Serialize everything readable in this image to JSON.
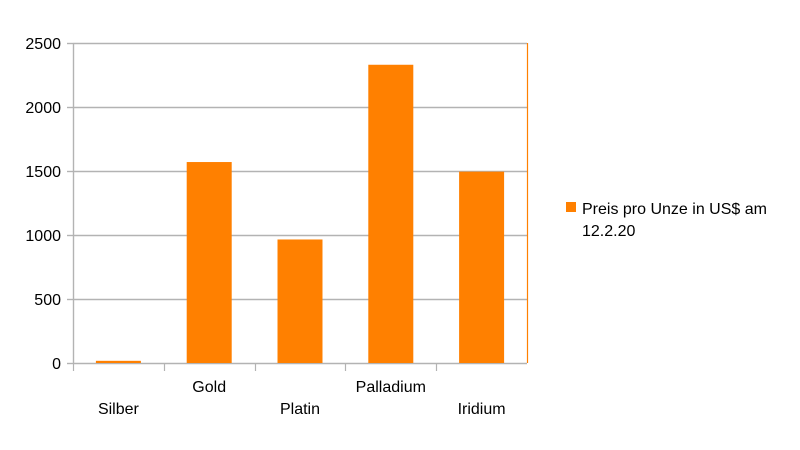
{
  "chart_data": {
    "type": "bar",
    "categories": [
      "Silber",
      "Gold",
      "Platin",
      "Palladium",
      "Iridium"
    ],
    "series": [
      {
        "name": "Preis pro Unze in US$ am 12.2.20",
        "values": [
          17,
          1570,
          965,
          2330,
          1495
        ]
      }
    ],
    "y_ticks": [
      0,
      500,
      1000,
      1500,
      2000,
      2500
    ],
    "ylim": [
      0,
      2500
    ],
    "grid": true,
    "legend": {
      "placement": "right",
      "lines": [
        "Preis pro Unze in US$ am",
        "12.2.20"
      ]
    },
    "colors": {
      "bar": "#ff8000",
      "grid": "#b3b3b3",
      "axis": "#b3b3b3",
      "right_border": "#ff8000"
    }
  }
}
